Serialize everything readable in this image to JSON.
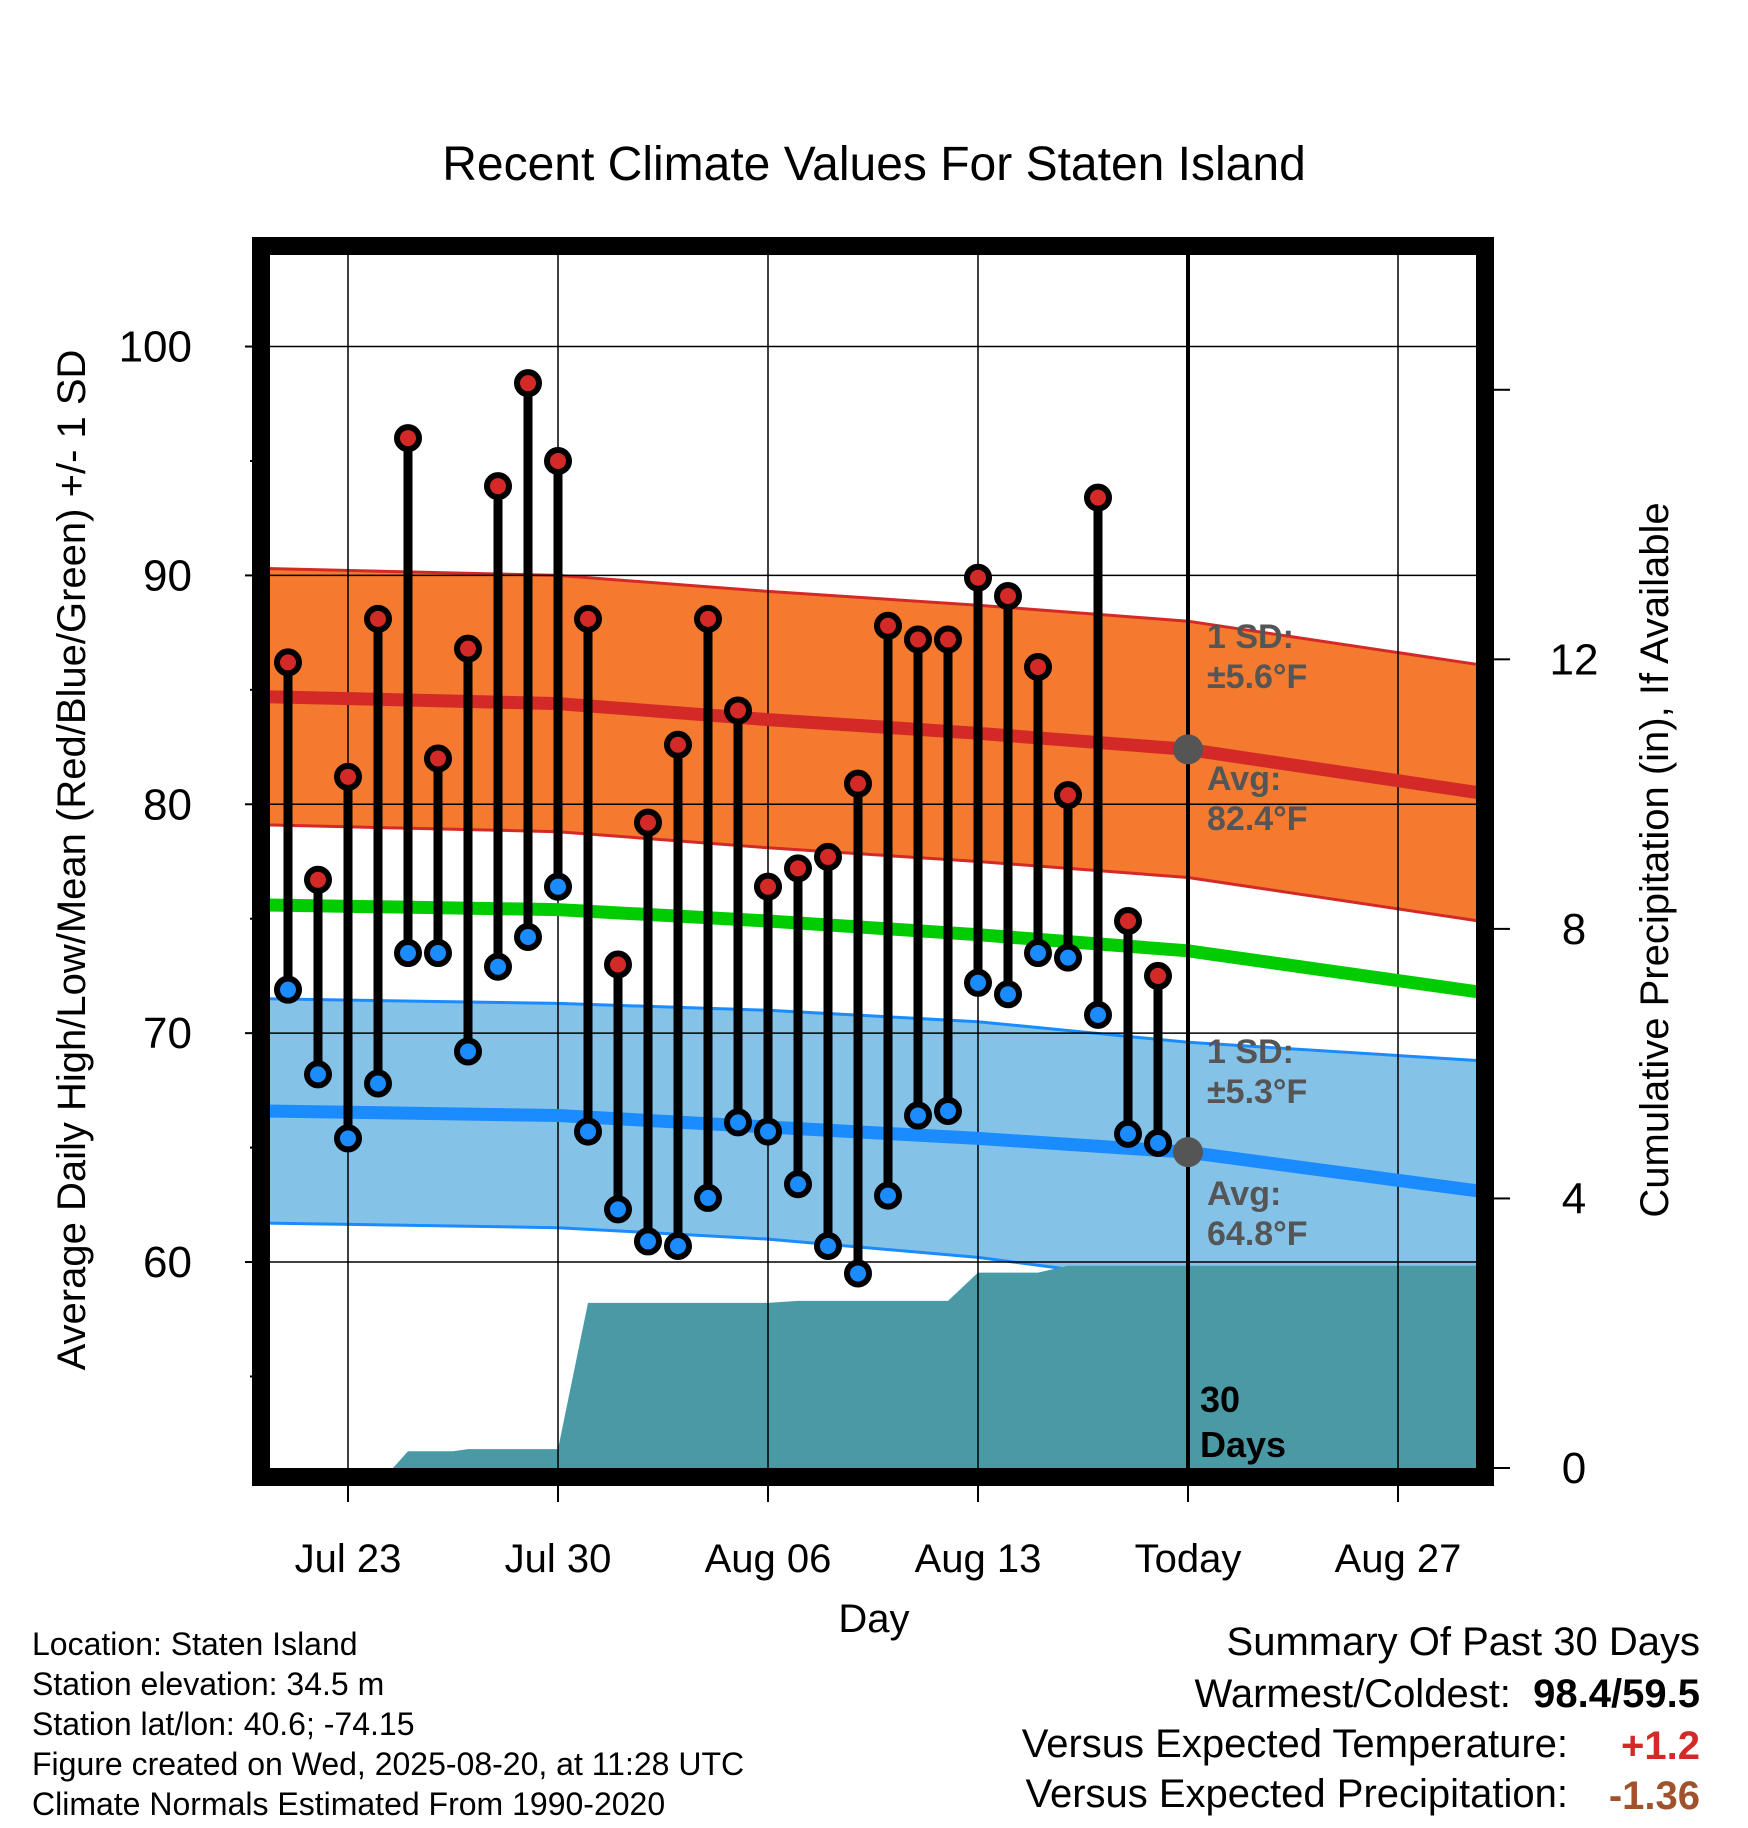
{
  "chart_data": {
    "type": "line",
    "title": "Recent Climate Values For Staten Island",
    "xlabel": "Day",
    "ylabel": "Average Daily High/Low/Mean (Red/Blue/Green) +/- 1 SD",
    "y2label": "Cumulative Precipitation (in), If Available",
    "ylim": [
      51,
      104
    ],
    "y2lim": [
      0,
      18
    ],
    "yticks": [
      "60",
      "70",
      "80",
      "90",
      "100"
    ],
    "y2ticks": [
      "0",
      "4",
      "8",
      "12"
    ],
    "xticks": [
      {
        "day": 0,
        "label": "Jul 23"
      },
      {
        "day": 7,
        "label": "Jul 30"
      },
      {
        "day": 14,
        "label": "Aug 06"
      },
      {
        "day": 21,
        "label": "Aug 13"
      },
      {
        "day": 28,
        "label": "Today"
      },
      {
        "day": 35,
        "label": "Aug 27"
      }
    ],
    "x_axis_note": "day index counted from Jul 23",
    "xlim": [
      -2.7,
      37.7
    ],
    "grid": true,
    "daily_high": [
      [
        -2,
        86.2
      ],
      [
        -1,
        76.7
      ],
      [
        0,
        81.2
      ],
      [
        1,
        88.1
      ],
      [
        2,
        96.0
      ],
      [
        3,
        82.0
      ],
      [
        4,
        86.8
      ],
      [
        5,
        93.9
      ],
      [
        6,
        98.4
      ],
      [
        7,
        95.0
      ],
      [
        8,
        88.1
      ],
      [
        9,
        73.0
      ],
      [
        10,
        79.2
      ],
      [
        11,
        82.6
      ],
      [
        12,
        88.1
      ],
      [
        13,
        84.1
      ],
      [
        14,
        76.4
      ],
      [
        15,
        77.2
      ],
      [
        16,
        77.7
      ],
      [
        17,
        80.9
      ],
      [
        18,
        87.8
      ],
      [
        19,
        87.2
      ],
      [
        20,
        87.2
      ],
      [
        21,
        89.9
      ],
      [
        22,
        89.1
      ],
      [
        23,
        86.0
      ],
      [
        24,
        80.4
      ],
      [
        25,
        93.4
      ],
      [
        26,
        74.9
      ],
      [
        27,
        72.5
      ]
    ],
    "daily_low": [
      [
        -2,
        71.9
      ],
      [
        -1,
        68.2
      ],
      [
        0,
        65.4
      ],
      [
        1,
        67.8
      ],
      [
        2,
        73.5
      ],
      [
        3,
        73.5
      ],
      [
        4,
        69.2
      ],
      [
        5,
        72.9
      ],
      [
        6,
        74.2
      ],
      [
        7,
        76.4
      ],
      [
        8,
        65.7
      ],
      [
        9,
        62.3
      ],
      [
        10,
        60.9
      ],
      [
        11,
        60.7
      ],
      [
        12,
        62.8
      ],
      [
        13,
        66.1
      ],
      [
        14,
        65.7
      ],
      [
        15,
        63.4
      ],
      [
        16,
        60.7
      ],
      [
        17,
        59.5
      ],
      [
        18,
        62.9
      ],
      [
        19,
        66.4
      ],
      [
        20,
        66.6
      ],
      [
        21,
        72.2
      ],
      [
        22,
        71.7
      ],
      [
        23,
        73.5
      ],
      [
        24,
        73.3
      ],
      [
        25,
        70.8
      ],
      [
        26,
        65.6
      ],
      [
        27,
        65.2
      ]
    ],
    "normal_high": {
      "day": [
        -2.7,
        7,
        14,
        21,
        28,
        37.7
      ],
      "avg": [
        84.7,
        84.4,
        83.7,
        83.1,
        82.4,
        80.5
      ],
      "sd_upper": [
        90.3,
        90.0,
        89.3,
        88.7,
        88.0,
        86.1
      ],
      "sd_lower": [
        79.1,
        78.8,
        78.1,
        77.5,
        76.8,
        74.9
      ],
      "sd_text": "1 SD:",
      "sd_value": "±5.6°F",
      "avg_text": "Avg:",
      "avg_value": "82.4°F"
    },
    "normal_mean": {
      "day": [
        -2.7,
        7,
        14,
        21,
        28,
        37.7
      ],
      "avg": [
        75.6,
        75.4,
        74.9,
        74.3,
        73.6,
        71.8
      ]
    },
    "normal_low": {
      "day": [
        -2.7,
        7,
        14,
        21,
        28,
        37.7
      ],
      "avg": [
        66.6,
        66.4,
        65.9,
        65.4,
        64.8,
        63.1
      ],
      "sd_upper": [
        71.5,
        71.3,
        71.0,
        70.5,
        69.6,
        68.8
      ],
      "sd_lower": [
        61.7,
        61.5,
        61.0,
        60.2,
        59.0,
        57.4
      ],
      "sd_text": "1 SD:",
      "sd_value": "±5.3°F",
      "avg_text": "Avg:",
      "avg_value": "64.8°F"
    },
    "cumulative_precip": [
      [
        -2.7,
        0
      ],
      [
        1.5,
        0
      ],
      [
        2,
        0.25
      ],
      [
        3.5,
        0.25
      ],
      [
        4,
        0.28
      ],
      [
        7,
        0.28
      ],
      [
        8,
        2.45
      ],
      [
        14,
        2.45
      ],
      [
        15,
        2.48
      ],
      [
        20,
        2.48
      ],
      [
        21,
        2.9
      ],
      [
        23,
        2.9
      ],
      [
        24,
        3.0
      ],
      [
        37.7,
        3.0
      ]
    ],
    "today_day": 28,
    "today_label_line1": "30",
    "today_label_line2": "Days",
    "colors": {
      "high_band": "#f47a2f",
      "high_line": "#d42a27",
      "mean_line": "#00cc00",
      "low_band": "#84c2e8",
      "low_line": "#1a8cff",
      "precip_fill": "#4a9aa5",
      "high_marker": "#d42a27",
      "low_marker": "#1a8cff",
      "annotation": "#555555"
    }
  },
  "meta": {
    "location": "Location: Staten Island",
    "elevation": "Station elevation: 34.5 m",
    "latlon": "Station lat/lon: 40.6; -74.15",
    "created": "Figure created on Wed, 2025-08-20, at 11:28 UTC",
    "normals": "Climate Normals Estimated From 1990-2020"
  },
  "summary": {
    "heading": "Summary Of Past 30 Days",
    "warm_cold_label": "Warmest/Coldest:",
    "warmest": "98.4",
    "slash": "/",
    "coldest": "59.5",
    "temp_label": "Versus Expected Temperature:",
    "temp_value": "+1.2",
    "precip_label": "Versus Expected Precipitation:",
    "precip_value": "-1.36",
    "temp_color": "#d42a27",
    "precip_color": "#a0522d"
  }
}
